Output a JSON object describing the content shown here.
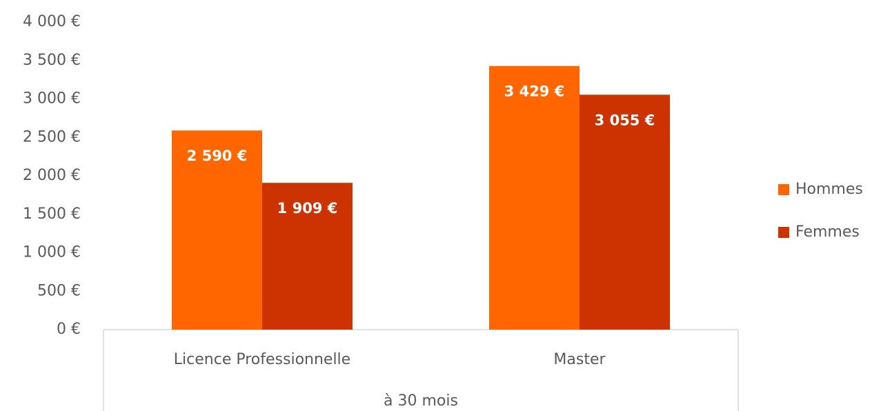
{
  "chart_data": {
    "type": "bar",
    "categories": [
      "Licence Professionnelle",
      "Master"
    ],
    "group_label": "à 30 mois",
    "series": [
      {
        "name": "Hommes",
        "color": "#ff6600",
        "values": [
          2590,
          3429
        ],
        "value_labels": [
          "2 590 €",
          "3 429 €"
        ]
      },
      {
        "name": "Femmes",
        "color": "#cc3300",
        "values": [
          1909,
          3055
        ],
        "value_labels": [
          "1 909 €",
          "3 055 €"
        ]
      }
    ],
    "ylim": [
      0,
      4000
    ],
    "yticks": [
      {
        "value": 0,
        "label": "0 €"
      },
      {
        "value": 500,
        "label": "500 €"
      },
      {
        "value": 1000,
        "label": "1 000 €"
      },
      {
        "value": 1500,
        "label": "1 500 €"
      },
      {
        "value": 2000,
        "label": "2 000 €"
      },
      {
        "value": 2500,
        "label": "2 500 €"
      },
      {
        "value": 3000,
        "label": "3 000 €"
      },
      {
        "value": 3500,
        "label": "3 500 €"
      },
      {
        "value": 4000,
        "label": "4 000 €"
      }
    ],
    "grid": false,
    "legend": "right"
  }
}
